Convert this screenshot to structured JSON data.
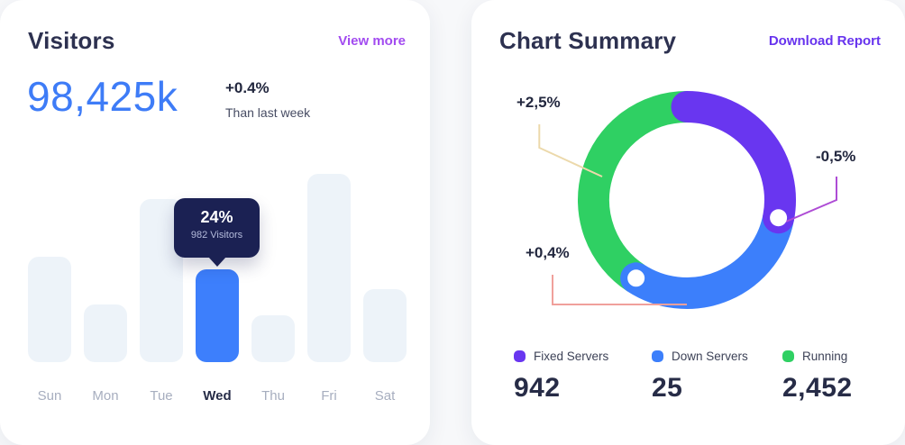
{
  "palette": {
    "page_bg": "#f7f8fa",
    "card_bg": "#ffffff",
    "title_text": "#2d3150",
    "accent_blue": "#3e7cf7",
    "view_more_purple": "#a24bf0",
    "download_purple": "#6733ee",
    "bar_default": "#edf3f9",
    "bar_active": "#3d7ffc",
    "tooltip_bg": "#1b2153",
    "donut_purple": "#6936f0",
    "donut_blue": "#3c7ffb",
    "donut_green": "#2fd063",
    "line_beige": "#ecd9ab",
    "line_magenta": "#ae4cd5",
    "line_salmon": "#f0a09b"
  },
  "visitors_card": {
    "title": "Visitors",
    "action_label": "View more",
    "stat_value": "98,425k",
    "stat_change": "+0.4%",
    "stat_caption": "Than last week",
    "tooltip": {
      "percent": "24%",
      "caption": "982 Visitors"
    }
  },
  "summary_card": {
    "title": "Chart Summary",
    "action_label": "Download Report",
    "callouts": {
      "green": "+2,5%",
      "purple": "-0,5%",
      "blue": "+0,4%"
    },
    "legend": [
      {
        "label": "Fixed Servers",
        "value": "942"
      },
      {
        "label": "Down Servers",
        "value": "25"
      },
      {
        "label": "Running",
        "value": "2,452"
      }
    ]
  },
  "chart_data": [
    {
      "type": "bar",
      "title": "Visitors",
      "categories": [
        "Sun",
        "Mon",
        "Tue",
        "Wed",
        "Thu",
        "Fri",
        "Sat"
      ],
      "values": [
        117,
        64,
        181,
        103,
        52,
        209,
        81
      ],
      "value_unit": "relative bar height (px), y-axis hidden",
      "highlight_index": 3,
      "highlight": {
        "category": "Wed",
        "percent": "24%",
        "visitors": "982 Visitors"
      },
      "colors": {
        "default": "#edf3f9",
        "active": "#3d7ffc"
      },
      "grid": false,
      "legend_position": "none"
    },
    {
      "type": "pie",
      "donut": true,
      "title": "Chart Summary",
      "labels": [
        "Fixed Servers",
        "Down Servers",
        "Running"
      ],
      "values": [
        942,
        25,
        2452
      ],
      "changes": [
        "-0,5%",
        "+0,4%",
        "+2,5%"
      ],
      "colors": [
        "#6936f0",
        "#3c7ffb",
        "#2fd063"
      ],
      "arc_degrees_clockwise_from_top": {
        "Fixed Servers": [
          0,
          101
        ],
        "Down Servers": [
          101,
          213
        ],
        "Running": [
          213,
          360
        ]
      },
      "legend_position": "bottom"
    }
  ]
}
